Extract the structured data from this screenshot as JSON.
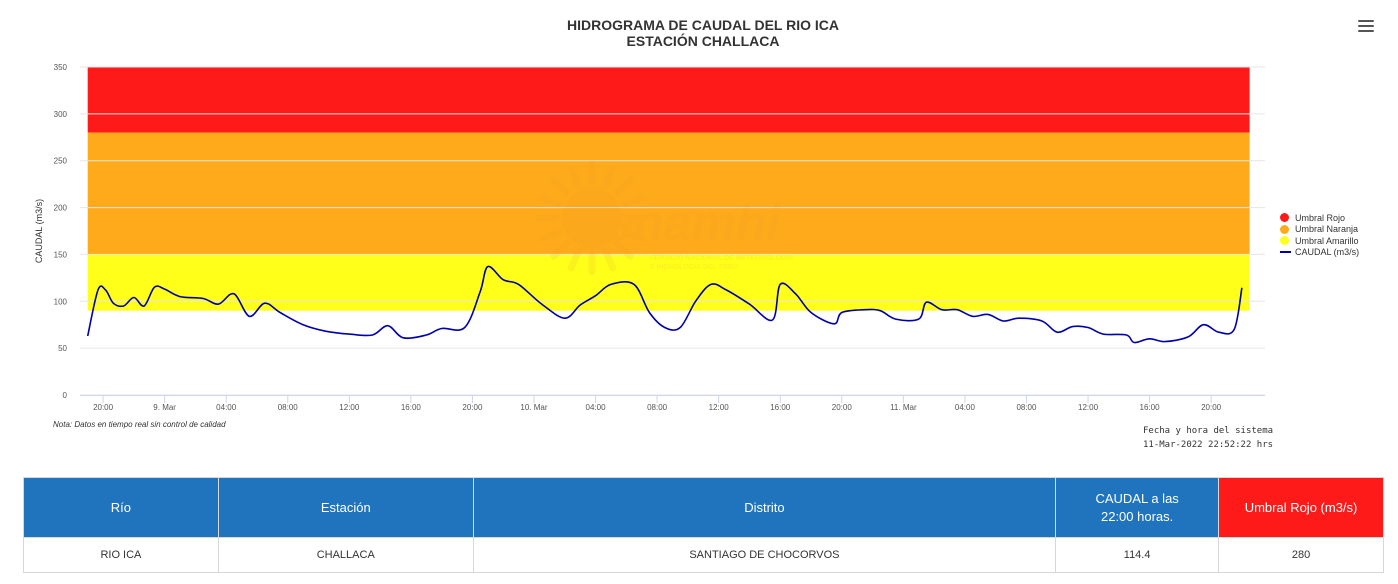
{
  "chart": {
    "title_line1": "HIDROGRAMA DE CAUDAL DEL RIO ICA",
    "title_line2": "ESTACIÓN CHALLACA",
    "note": "Nota: Datos en tiempo real sin control de calidad",
    "system_date_label": "Fecha y hora del sistema",
    "system_date_value": "11-Mar-2022 22:52:22 hrs",
    "watermark_brand": "Senamhi",
    "watermark_line1": "SERVICIO NACIONAL DE METEOROLOGÍA",
    "watermark_line2": "E HIDROLOGÍA DEL PERÚ",
    "legend": [
      {
        "label": "Umbral Rojo",
        "color": "#ff1a1a",
        "kind": "dot"
      },
      {
        "label": "Umbral Naranja",
        "color": "#ffaa1a",
        "kind": "dot"
      },
      {
        "label": "Umbral Amarillo",
        "color": "#ffff1a",
        "kind": "dot"
      },
      {
        "label": "CAUDAL (m3/s)",
        "color": "#0000a8",
        "kind": "line"
      }
    ]
  },
  "chart_data": {
    "type": "line",
    "ylabel": "CAUDAL (m3/s)",
    "xlabel": "",
    "ylim": [
      0,
      350
    ],
    "yticks": [
      0,
      50,
      100,
      150,
      200,
      250,
      300,
      350
    ],
    "xlim": [
      "2022-03-08T18:30",
      "2022-03-11T23:30"
    ],
    "xticks": [
      {
        "t": "2022-03-08T20:00",
        "label": "20:00"
      },
      {
        "t": "2022-03-09T00:00",
        "label": "9. Mar"
      },
      {
        "t": "2022-03-09T04:00",
        "label": "04:00"
      },
      {
        "t": "2022-03-09T08:00",
        "label": "08:00"
      },
      {
        "t": "2022-03-09T12:00",
        "label": "12:00"
      },
      {
        "t": "2022-03-09T16:00",
        "label": "16:00"
      },
      {
        "t": "2022-03-09T20:00",
        "label": "20:00"
      },
      {
        "t": "2022-03-10T00:00",
        "label": "10. Mar"
      },
      {
        "t": "2022-03-10T04:00",
        "label": "04:00"
      },
      {
        "t": "2022-03-10T08:00",
        "label": "08:00"
      },
      {
        "t": "2022-03-10T12:00",
        "label": "12:00"
      },
      {
        "t": "2022-03-10T16:00",
        "label": "16:00"
      },
      {
        "t": "2022-03-10T20:00",
        "label": "20:00"
      },
      {
        "t": "2022-03-11T00:00",
        "label": "11. Mar"
      },
      {
        "t": "2022-03-11T04:00",
        "label": "04:00"
      },
      {
        "t": "2022-03-11T08:00",
        "label": "08:00"
      },
      {
        "t": "2022-03-11T12:00",
        "label": "12:00"
      },
      {
        "t": "2022-03-11T16:00",
        "label": "16:00"
      },
      {
        "t": "2022-03-11T20:00",
        "label": "20:00"
      }
    ],
    "thresholds": [
      {
        "name": "Umbral Rojo",
        "from": 280,
        "to": 350,
        "color": "#ff1a1a"
      },
      {
        "name": "Umbral Naranja",
        "from": 150,
        "to": 280,
        "color": "#ffaa1a"
      },
      {
        "name": "Umbral Amarillo",
        "from": 90,
        "to": 150,
        "color": "#ffff1a"
      }
    ],
    "threshold_start": "2022-03-08T19:00",
    "threshold_end": "2022-03-11T22:30",
    "series": [
      {
        "name": "CAUDAL (m3/s)",
        "color": "#0000a8",
        "points": [
          [
            "2022-03-08T19:00",
            63
          ],
          [
            "2022-03-08T19:40",
            112
          ],
          [
            "2022-03-08T20:10",
            112
          ],
          [
            "2022-03-08T20:40",
            98
          ],
          [
            "2022-03-08T21:20",
            95
          ],
          [
            "2022-03-08T22:00",
            104
          ],
          [
            "2022-03-08T22:40",
            95
          ],
          [
            "2022-03-08T23:20",
            115
          ],
          [
            "2022-03-09T00:00",
            113
          ],
          [
            "2022-03-09T01:00",
            105
          ],
          [
            "2022-03-09T02:30",
            103
          ],
          [
            "2022-03-09T03:30",
            97
          ],
          [
            "2022-03-09T04:30",
            108
          ],
          [
            "2022-03-09T05:30",
            84
          ],
          [
            "2022-03-09T06:30",
            98
          ],
          [
            "2022-03-09T07:30",
            88
          ],
          [
            "2022-03-09T09:00",
            75
          ],
          [
            "2022-03-09T10:30",
            68
          ],
          [
            "2022-03-09T12:00",
            65
          ],
          [
            "2022-03-09T13:30",
            64
          ],
          [
            "2022-03-09T14:30",
            74
          ],
          [
            "2022-03-09T15:30",
            61
          ],
          [
            "2022-03-09T17:00",
            64
          ],
          [
            "2022-03-09T18:00",
            71
          ],
          [
            "2022-03-09T19:30",
            72
          ],
          [
            "2022-03-09T20:30",
            110
          ],
          [
            "2022-03-09T21:00",
            137
          ],
          [
            "2022-03-09T22:00",
            123
          ],
          [
            "2022-03-09T23:00",
            118
          ],
          [
            "2022-03-10T00:30",
            97
          ],
          [
            "2022-03-10T02:00",
            82
          ],
          [
            "2022-03-10T03:00",
            96
          ],
          [
            "2022-03-10T04:00",
            106
          ],
          [
            "2022-03-10T05:00",
            118
          ],
          [
            "2022-03-10T06:30",
            118
          ],
          [
            "2022-03-10T07:30",
            88
          ],
          [
            "2022-03-10T08:30",
            72
          ],
          [
            "2022-03-10T09:30",
            72
          ],
          [
            "2022-03-10T10:30",
            100
          ],
          [
            "2022-03-10T11:30",
            118
          ],
          [
            "2022-03-10T12:30",
            112
          ],
          [
            "2022-03-10T14:00",
            97
          ],
          [
            "2022-03-10T15:30",
            80
          ],
          [
            "2022-03-10T16:00",
            118
          ],
          [
            "2022-03-10T17:00",
            108
          ],
          [
            "2022-03-10T18:00",
            88
          ],
          [
            "2022-03-10T19:30",
            76
          ],
          [
            "2022-03-10T20:00",
            88
          ],
          [
            "2022-03-10T21:30",
            91
          ],
          [
            "2022-03-10T22:30",
            90
          ],
          [
            "2022-03-10T23:30",
            81
          ],
          [
            "2022-03-11T01:00",
            81
          ],
          [
            "2022-03-11T01:30",
            99
          ],
          [
            "2022-03-11T02:30",
            91
          ],
          [
            "2022-03-11T03:30",
            91
          ],
          [
            "2022-03-11T04:30",
            84
          ],
          [
            "2022-03-11T05:30",
            86
          ],
          [
            "2022-03-11T06:30",
            79
          ],
          [
            "2022-03-11T07:30",
            82
          ],
          [
            "2022-03-11T09:00",
            79
          ],
          [
            "2022-03-11T10:00",
            67
          ],
          [
            "2022-03-11T11:00",
            73
          ],
          [
            "2022-03-11T12:00",
            72
          ],
          [
            "2022-03-11T13:00",
            65
          ],
          [
            "2022-03-11T14:30",
            64
          ],
          [
            "2022-03-11T15:00",
            56
          ],
          [
            "2022-03-11T16:00",
            60
          ],
          [
            "2022-03-11T17:00",
            57
          ],
          [
            "2022-03-11T18:30",
            62
          ],
          [
            "2022-03-11T19:30",
            75
          ],
          [
            "2022-03-11T20:30",
            67
          ],
          [
            "2022-03-11T21:30",
            70
          ],
          [
            "2022-03-11T22:00",
            114.4
          ]
        ]
      }
    ]
  },
  "table": {
    "headers": {
      "rio": "Río",
      "estacion": "Estación",
      "distrito": "Distrito",
      "caudal_line1": "CAUDAL a las",
      "caudal_line2": "22:00 horas.",
      "umbral": "Umbral Rojo (m3/s)"
    },
    "row": {
      "rio": "RIO ICA",
      "estacion": "CHALLACA",
      "distrito": "SANTIAGO DE CHOCORVOS",
      "caudal": "114.4",
      "umbral": "280"
    }
  }
}
